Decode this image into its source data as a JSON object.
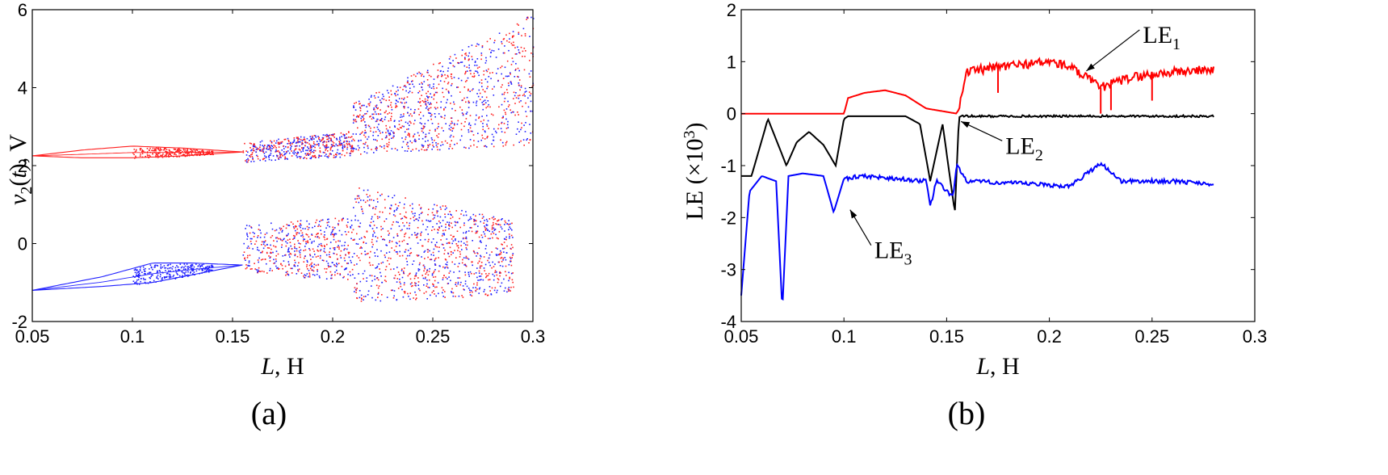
{
  "chart_data": [
    {
      "type": "scatter",
      "panel_label": "(a)",
      "title": "",
      "xlabel": {
        "italic": "L",
        "rest": ", H"
      },
      "ylabel": {
        "v": "v",
        "sub": "2",
        "t": "t",
        "unit": "V"
      },
      "xlim": [
        0.05,
        0.3
      ],
      "ylim": [
        -2,
        6
      ],
      "xticks": [
        "0.05",
        "0.1",
        "0.15",
        "0.2",
        "0.25",
        "0.3"
      ],
      "yticks": [
        "-2",
        "0",
        "2",
        "4",
        "6"
      ],
      "colors": {
        "upper": "#ff2020",
        "lower": "#1f1fff"
      },
      "series": [
        {
          "name": "upper branch (red/blue)",
          "periodic_L": [
            0.05,
            0.075,
            0.1,
            0.125,
            0.155
          ],
          "periodic_v2_top": [
            2.25,
            2.4,
            2.5,
            2.45,
            2.35
          ],
          "periodic_v2_bottom": [
            2.25,
            2.2,
            2.2,
            2.25,
            2.35
          ],
          "chaotic_L": [
            0.155,
            0.21,
            0.21,
            0.3
          ],
          "chaotic_v2_low": [
            2.1,
            2.25,
            2.3,
            2.55
          ],
          "chaotic_v2_high": [
            2.6,
            2.9,
            3.6,
            5.9
          ]
        },
        {
          "name": "lower branch (blue/red)",
          "periodic_L": [
            0.05,
            0.085,
            0.11,
            0.13,
            0.155
          ],
          "periodic_v2_top": [
            -1.2,
            -0.85,
            -0.5,
            -0.5,
            -0.55
          ],
          "periodic_v2_bottom": [
            -1.2,
            -1.1,
            -1.0,
            -0.8,
            -0.55
          ],
          "chaotic_L": [
            0.155,
            0.21,
            0.21,
            0.29
          ],
          "chaotic_v2_low": [
            -0.7,
            -1.0,
            -1.5,
            -1.3
          ],
          "chaotic_v2_high": [
            0.5,
            0.7,
            1.5,
            0.6
          ]
        }
      ]
    },
    {
      "type": "line",
      "panel_label": "(b)",
      "title": "",
      "xlabel": {
        "italic": "L",
        "rest": ", H"
      },
      "ylabel": {
        "text": "LE (×10",
        "sup": "3",
        "close": ")"
      },
      "xlim": [
        0.05,
        0.3
      ],
      "ylim": [
        -4,
        2
      ],
      "xticks": [
        "0.05",
        "0.1",
        "0.15",
        "0.2",
        "0.25",
        "0.3"
      ],
      "yticks": [
        "-4",
        "-3",
        "-2",
        "-1",
        "0",
        "1",
        "2"
      ],
      "series": [
        {
          "name": "LE1",
          "label": "LE",
          "sub": "1",
          "color": "#ff0000",
          "x": [
            0.05,
            0.1,
            0.102,
            0.11,
            0.12,
            0.13,
            0.14,
            0.155,
            0.16,
            0.175,
            0.2,
            0.21,
            0.225,
            0.24,
            0.26,
            0.28
          ],
          "y": [
            0.0,
            0.0,
            0.3,
            0.4,
            0.45,
            0.35,
            0.1,
            0.0,
            0.8,
            0.9,
            1.0,
            0.9,
            0.5,
            0.7,
            0.8,
            0.85
          ]
        },
        {
          "name": "LE2",
          "label": "LE",
          "sub": "2",
          "color": "#000000",
          "x": [
            0.05,
            0.055,
            0.063,
            0.072,
            0.077,
            0.083,
            0.09,
            0.096,
            0.1,
            0.102,
            0.13,
            0.137,
            0.142,
            0.148,
            0.154,
            0.156,
            0.2,
            0.28
          ],
          "y": [
            -1.2,
            -1.2,
            -0.1,
            -1.0,
            -0.55,
            -0.35,
            -0.6,
            -1.0,
            -0.1,
            -0.05,
            -0.05,
            -0.2,
            -1.3,
            -0.2,
            -1.9,
            -0.05,
            -0.05,
            -0.05
          ]
        },
        {
          "name": "LE3",
          "label": "LE",
          "sub": "3",
          "color": "#0000ff",
          "x": [
            0.05,
            0.054,
            0.06,
            0.067,
            0.07,
            0.073,
            0.08,
            0.09,
            0.095,
            0.1,
            0.11,
            0.14,
            0.142,
            0.145,
            0.153,
            0.155,
            0.16,
            0.19,
            0.21,
            0.225,
            0.235,
            0.26,
            0.28
          ],
          "y": [
            -3.5,
            -1.5,
            -1.2,
            -1.3,
            -3.8,
            -1.2,
            -1.15,
            -1.2,
            -1.9,
            -1.25,
            -1.2,
            -1.3,
            -1.8,
            -1.3,
            -1.6,
            -1.0,
            -1.3,
            -1.35,
            -1.4,
            -0.95,
            -1.3,
            -1.3,
            -1.35
          ]
        }
      ],
      "annotations": [
        {
          "series": "LE1",
          "text": "LE",
          "sub": "1",
          "at_x": 0.218,
          "at_y": 0.82
        },
        {
          "series": "LE2",
          "text": "LE",
          "sub": "2",
          "at_x": 0.157,
          "at_y": -0.15
        },
        {
          "series": "LE3",
          "text": "LE",
          "sub": "3",
          "at_x": 0.103,
          "at_y": -1.85
        }
      ]
    }
  ]
}
